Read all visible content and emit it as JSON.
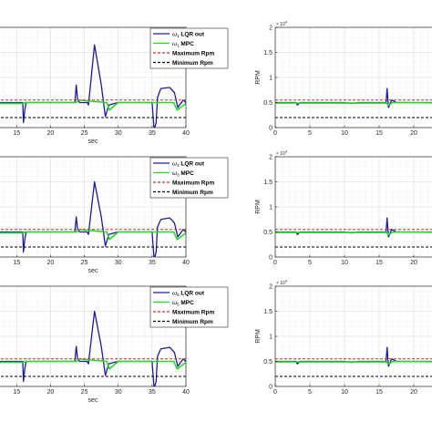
{
  "chart_data": [
    {
      "type": "line",
      "panel": "left-1",
      "xlabel": "sec",
      "ylabel": "",
      "xlim": [
        12,
        40
      ],
      "ylim": [
        0,
        2
      ],
      "xticks": [
        "15",
        "20",
        "25",
        "30",
        "35",
        "40"
      ],
      "legend": {
        "placement": "top-right",
        "entries": [
          {
            "sym": "ω",
            "sub": "1",
            "text": " LQR out",
            "color": "#1a1aa6",
            "dash": false
          },
          {
            "sym": "ω",
            "sub": "1",
            "text": " MPC",
            "color": "#22dd22",
            "dash": false
          },
          {
            "sym": "",
            "sub": "",
            "text": "Maximum Rpm",
            "color": "#d62728",
            "dash": true
          },
          {
            "sym": "",
            "sub": "",
            "text": "Minimum Rpm",
            "color": "#000000",
            "dash": true
          }
        ]
      },
      "grid": true,
      "series": [
        {
          "name": "LQR out",
          "color": "#1a1aa6",
          "x": [
            12,
            15.9,
            16,
            16.2,
            16.4,
            23.6,
            23.8,
            24,
            24.3,
            25.4,
            25.6,
            26.5,
            27.5,
            28.1,
            28.6,
            30,
            35,
            35.3,
            35.6,
            35.8,
            36.3,
            37.6,
            38.3,
            38.8,
            39.6,
            40
          ],
          "y": [
            0.5,
            0.5,
            0.1,
            0.35,
            0.5,
            0.5,
            0.85,
            0.55,
            0.5,
            0.5,
            0.45,
            1.65,
            0.85,
            0.22,
            0.45,
            0.5,
            0.5,
            -0.05,
            0.1,
            0.6,
            0.78,
            0.8,
            0.7,
            0.4,
            0.55,
            0.5
          ]
        },
        {
          "name": "MPC",
          "color": "#22dd22",
          "x": [
            12,
            16,
            16.3,
            23.8,
            24.1,
            28.3,
            28.7,
            30,
            36,
            38.2,
            38.7,
            40
          ],
          "y": [
            0.48,
            0.48,
            0.5,
            0.5,
            0.55,
            0.5,
            0.35,
            0.5,
            0.5,
            0.5,
            0.35,
            0.48
          ]
        },
        {
          "name": "Maximum Rpm",
          "color": "#d62728",
          "dash": true,
          "x": [
            12,
            40
          ],
          "y": [
            0.55,
            0.55
          ]
        },
        {
          "name": "Minimum Rpm",
          "color": "#000000",
          "dash": true,
          "x": [
            12,
            40
          ],
          "y": [
            0.2,
            0.2
          ]
        }
      ]
    },
    {
      "type": "line",
      "panel": "right-1",
      "xlabel": "",
      "ylabel": "RPM",
      "exponent": "× 10",
      "exponent_power": "4",
      "xlim": [
        0,
        25
      ],
      "ylim": [
        0,
        2
      ],
      "xticks": [
        "0",
        "5",
        "10",
        "15",
        "20"
      ],
      "yticks": [
        "0",
        "0.5",
        "1",
        "1.5",
        "2"
      ],
      "grid": true,
      "series": [
        {
          "name": "",
          "color": "#1a1aa6",
          "x": [
            0,
            3,
            3.2,
            3.6,
            10,
            11,
            12,
            16,
            16.15,
            16.35,
            16.8,
            17.5,
            25
          ],
          "y": [
            0.5,
            0.5,
            0.45,
            0.5,
            0.5,
            0.48,
            0.5,
            0.5,
            0.78,
            0.4,
            0.55,
            0.5,
            0.5
          ]
        },
        {
          "name": "",
          "color": "#22dd22",
          "x": [
            0,
            16,
            16.4,
            17,
            25
          ],
          "y": [
            0.49,
            0.49,
            0.45,
            0.5,
            0.49
          ]
        },
        {
          "name": "",
          "color": "#d62728",
          "dash": true,
          "x": [
            0,
            25
          ],
          "y": [
            0.55,
            0.55
          ]
        },
        {
          "name": "",
          "color": "#000000",
          "dash": true,
          "x": [
            0,
            25
          ],
          "y": [
            0.2,
            0.2
          ]
        }
      ]
    },
    {
      "type": "line",
      "panel": "left-2",
      "xlabel": "sec",
      "ylabel": "",
      "xlim": [
        12,
        40
      ],
      "ylim": [
        0,
        2
      ],
      "xticks": [
        "15",
        "20",
        "25",
        "30",
        "35",
        "40"
      ],
      "legend": {
        "placement": "top-right",
        "entries": [
          {
            "sym": "ω",
            "sub": "3",
            "text": " LQR out",
            "color": "#1a1aa6",
            "dash": false
          },
          {
            "sym": "ω",
            "sub": "3",
            "text": " MPC",
            "color": "#22dd22",
            "dash": false
          },
          {
            "sym": "",
            "sub": "",
            "text": "Maximum Rpm",
            "color": "#d62728",
            "dash": true
          },
          {
            "sym": "",
            "sub": "",
            "text": "Minimum Rpm",
            "color": "#000000",
            "dash": true
          }
        ]
      },
      "grid": true,
      "series": [
        {
          "name": "LQR out",
          "color": "#1a1aa6",
          "x": [
            12,
            15.9,
            16,
            16.2,
            16.4,
            23.6,
            23.8,
            24,
            24.3,
            25.4,
            25.6,
            26.5,
            27.5,
            28.1,
            28.6,
            30,
            35,
            35.3,
            35.6,
            35.8,
            36.3,
            37.6,
            38.3,
            38.8,
            39.6,
            40
          ],
          "y": [
            0.5,
            0.5,
            0.1,
            0.35,
            0.5,
            0.5,
            0.8,
            0.55,
            0.5,
            0.5,
            0.45,
            1.5,
            0.8,
            0.22,
            0.45,
            0.5,
            0.5,
            -0.05,
            0.1,
            0.6,
            0.75,
            0.78,
            0.68,
            0.4,
            0.55,
            0.5
          ]
        },
        {
          "name": "MPC",
          "color": "#22dd22",
          "x": [
            12,
            16,
            16.3,
            23.8,
            24.1,
            28.3,
            28.7,
            30,
            36,
            38.2,
            38.7,
            40
          ],
          "y": [
            0.48,
            0.48,
            0.5,
            0.5,
            0.55,
            0.5,
            0.35,
            0.5,
            0.5,
            0.5,
            0.35,
            0.48
          ]
        },
        {
          "name": "Maximum Rpm",
          "color": "#d62728",
          "dash": true,
          "x": [
            12,
            40
          ],
          "y": [
            0.55,
            0.55
          ]
        },
        {
          "name": "Minimum Rpm",
          "color": "#000000",
          "dash": true,
          "x": [
            12,
            40
          ],
          "y": [
            0.2,
            0.2
          ]
        }
      ]
    },
    {
      "type": "line",
      "panel": "right-2",
      "xlabel": "",
      "ylabel": "RPM",
      "exponent": "× 10",
      "exponent_power": "4",
      "xlim": [
        0,
        25
      ],
      "ylim": [
        0,
        2
      ],
      "xticks": [
        "0",
        "5",
        "10",
        "15",
        "20"
      ],
      "yticks": [
        "0",
        "0.5",
        "1",
        "1.5",
        "2"
      ],
      "grid": true,
      "series": [
        {
          "name": "",
          "color": "#1a1aa6",
          "x": [
            0,
            3,
            3.2,
            3.6,
            10,
            11,
            12,
            16,
            16.15,
            16.35,
            16.8,
            17.5,
            25
          ],
          "y": [
            0.5,
            0.5,
            0.45,
            0.5,
            0.5,
            0.48,
            0.5,
            0.5,
            0.78,
            0.4,
            0.55,
            0.5,
            0.5
          ]
        },
        {
          "name": "",
          "color": "#22dd22",
          "x": [
            0,
            16,
            16.4,
            17,
            25
          ],
          "y": [
            0.49,
            0.49,
            0.45,
            0.5,
            0.49
          ]
        },
        {
          "name": "",
          "color": "#d62728",
          "dash": true,
          "x": [
            0,
            25
          ],
          "y": [
            0.55,
            0.55
          ]
        },
        {
          "name": "",
          "color": "#000000",
          "dash": true,
          "x": [
            0,
            25
          ],
          "y": [
            0.2,
            0.2
          ]
        }
      ]
    },
    {
      "type": "line",
      "panel": "left-3",
      "xlabel": "sec",
      "ylabel": "",
      "xlim": [
        12,
        40
      ],
      "ylim": [
        0,
        2
      ],
      "xticks": [
        "15",
        "20",
        "25",
        "30",
        "35",
        "40"
      ],
      "legend": {
        "placement": "top-right",
        "entries": [
          {
            "sym": "ω",
            "sub": "5",
            "text": " LQR out",
            "color": "#1a1aa6",
            "dash": false
          },
          {
            "sym": "ω",
            "sub": "5",
            "text": " MPC",
            "color": "#22dd22",
            "dash": false
          },
          {
            "sym": "",
            "sub": "",
            "text": "Maximum Rpm",
            "color": "#d62728",
            "dash": true
          },
          {
            "sym": "",
            "sub": "",
            "text": "Minimum Rpm",
            "color": "#000000",
            "dash": true
          }
        ]
      },
      "grid": true,
      "series": [
        {
          "name": "LQR out",
          "color": "#1a1aa6",
          "x": [
            12,
            15.9,
            16,
            16.2,
            16.4,
            23.6,
            23.8,
            24,
            24.3,
            25.4,
            25.6,
            26.5,
            27.5,
            28.1,
            28.6,
            30,
            35,
            35.3,
            35.6,
            35.8,
            36.3,
            37.6,
            38.3,
            38.8,
            39.6,
            40
          ],
          "y": [
            0.5,
            0.5,
            0.1,
            0.35,
            0.5,
            0.5,
            0.8,
            0.55,
            0.5,
            0.5,
            0.45,
            1.5,
            0.8,
            0.22,
            0.45,
            0.5,
            0.5,
            -0.05,
            0.1,
            0.6,
            0.75,
            0.78,
            0.68,
            0.4,
            0.55,
            0.5
          ]
        },
        {
          "name": "MPC",
          "color": "#22dd22",
          "x": [
            12,
            16,
            16.3,
            23.8,
            24.1,
            28.3,
            28.7,
            30,
            36,
            38.2,
            38.7,
            40
          ],
          "y": [
            0.48,
            0.48,
            0.5,
            0.5,
            0.55,
            0.5,
            0.35,
            0.5,
            0.5,
            0.5,
            0.35,
            0.48
          ]
        },
        {
          "name": "Maximum Rpm",
          "color": "#d62728",
          "dash": true,
          "x": [
            12,
            40
          ],
          "y": [
            0.55,
            0.55
          ]
        },
        {
          "name": "Minimum Rpm",
          "color": "#000000",
          "dash": true,
          "x": [
            12,
            40
          ],
          "y": [
            0.2,
            0.2
          ]
        }
      ]
    },
    {
      "type": "line",
      "panel": "right-3",
      "xlabel": "",
      "ylabel": "RPM",
      "exponent": "× 10",
      "exponent_power": "4",
      "xlim": [
        0,
        25
      ],
      "ylim": [
        0,
        2
      ],
      "xticks": [
        "0",
        "5",
        "10",
        "15",
        "20"
      ],
      "yticks": [
        "0",
        "0.5",
        "1",
        "1.5",
        "2"
      ],
      "grid": true,
      "series": [
        {
          "name": "",
          "color": "#1a1aa6",
          "x": [
            0,
            3,
            3.2,
            3.6,
            10,
            11,
            12,
            16,
            16.15,
            16.35,
            16.8,
            17.5,
            25
          ],
          "y": [
            0.5,
            0.5,
            0.45,
            0.5,
            0.5,
            0.48,
            0.5,
            0.5,
            0.78,
            0.4,
            0.55,
            0.5,
            0.5
          ]
        },
        {
          "name": "",
          "color": "#22dd22",
          "x": [
            0,
            16,
            16.4,
            17,
            25
          ],
          "y": [
            0.49,
            0.49,
            0.45,
            0.5,
            0.49
          ]
        },
        {
          "name": "",
          "color": "#d62728",
          "dash": true,
          "x": [
            0,
            25
          ],
          "y": [
            0.55,
            0.55
          ]
        },
        {
          "name": "",
          "color": "#000000",
          "dash": true,
          "x": [
            0,
            25
          ],
          "y": [
            0.2,
            0.2
          ]
        }
      ]
    }
  ]
}
